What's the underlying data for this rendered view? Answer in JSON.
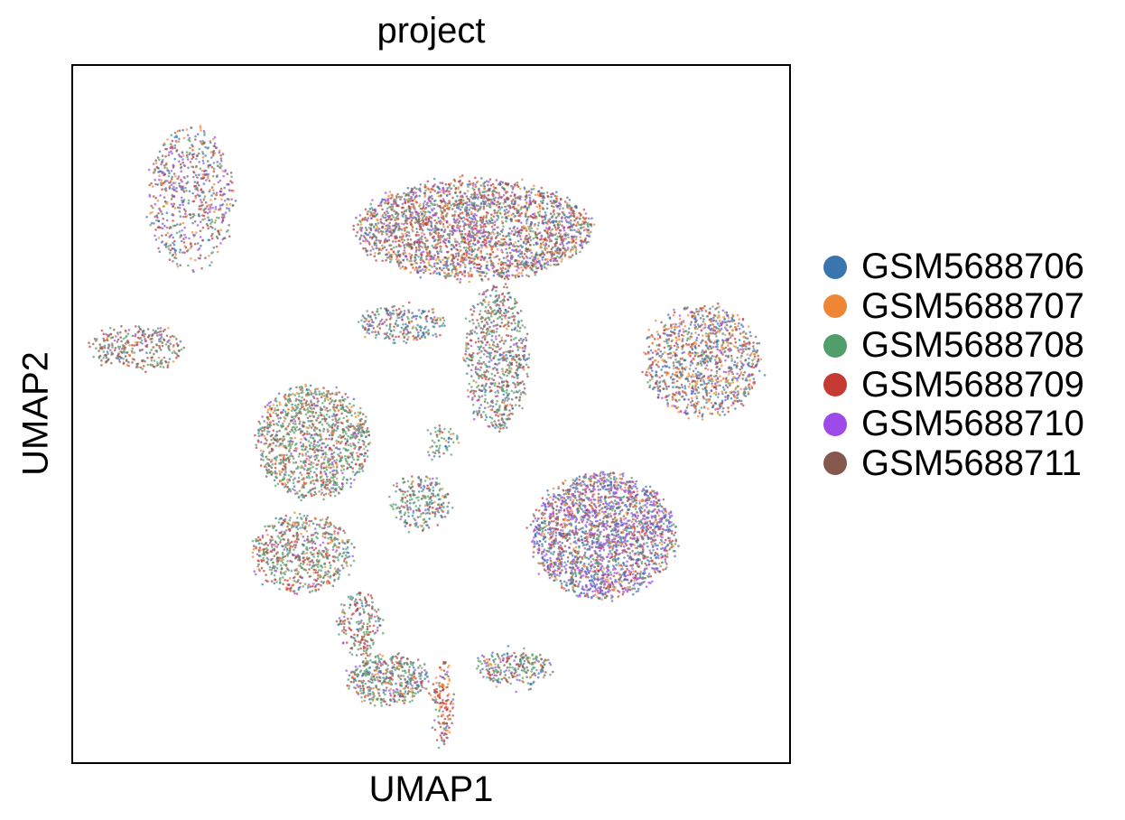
{
  "chart_data": {
    "type": "scatter",
    "title": "project",
    "xlabel": "UMAP1",
    "ylabel": "UMAP2",
    "grid": false,
    "ticks": "none",
    "legend_position": "right",
    "xlim": [
      0,
      100
    ],
    "ylim": [
      0,
      100
    ],
    "series": [
      {
        "name": "GSM5688706",
        "color": "#3a75b0"
      },
      {
        "name": "GSM5688707",
        "color": "#ef8636"
      },
      {
        "name": "GSM5688708",
        "color": "#519e6b"
      },
      {
        "name": "GSM5688709",
        "color": "#c53a32"
      },
      {
        "name": "GSM5688710",
        "color": "#9e4ae8"
      },
      {
        "name": "GSM5688711",
        "color": "#85584e"
      }
    ],
    "clusters": [
      {
        "cx": 56.0,
        "cy": 76.5,
        "rx": 16.5,
        "ry": 7.0,
        "n": 2600,
        "weights": [
          1,
          1,
          1,
          1.3,
          1,
          1.3
        ]
      },
      {
        "cx": 59.0,
        "cy": 58.0,
        "rx": 4.5,
        "ry": 10.5,
        "n": 700,
        "weights": [
          1,
          0.5,
          2,
          1,
          0.5,
          2
        ]
      },
      {
        "cx": 46.0,
        "cy": 63.0,
        "rx": 6.0,
        "ry": 2.5,
        "n": 250,
        "weights": [
          1.5,
          0.5,
          2,
          1,
          0.5,
          0.5
        ]
      },
      {
        "cx": 16.5,
        "cy": 81.0,
        "rx": 6.0,
        "ry": 10.5,
        "n": 650,
        "weights": [
          1.2,
          1,
          1,
          1,
          1.3,
          1.2
        ]
      },
      {
        "cx": 9.0,
        "cy": 59.5,
        "rx": 6.5,
        "ry": 3.2,
        "n": 300,
        "weights": [
          0.5,
          0.5,
          1.5,
          1,
          0.5,
          2
        ]
      },
      {
        "cx": 88.0,
        "cy": 57.5,
        "rx": 8.0,
        "ry": 8.0,
        "n": 1100,
        "weights": [
          1.6,
          1.6,
          0.5,
          0.6,
          0.5,
          1
        ]
      },
      {
        "cx": 74.0,
        "cy": 32.5,
        "rx": 10.0,
        "ry": 9.0,
        "n": 2200,
        "weights": [
          1.8,
          0.8,
          0.8,
          1,
          2,
          0.6
        ]
      },
      {
        "cx": 33.5,
        "cy": 46.0,
        "rx": 8.0,
        "ry": 8.0,
        "n": 1200,
        "weights": [
          0.6,
          0.8,
          2.6,
          1,
          0.4,
          0.8
        ]
      },
      {
        "cx": 32.0,
        "cy": 30.0,
        "rx": 7.0,
        "ry": 5.5,
        "n": 650,
        "weights": [
          0.6,
          0.8,
          2.5,
          1.3,
          0.4,
          0.8
        ]
      },
      {
        "cx": 48.5,
        "cy": 37.5,
        "rx": 4.0,
        "ry": 4.0,
        "n": 250,
        "weights": [
          1,
          0.4,
          2.5,
          0.8,
          0.4,
          0.4
        ]
      },
      {
        "cx": 51.5,
        "cy": 46.0,
        "rx": 2.0,
        "ry": 2.5,
        "n": 60,
        "weights": [
          1,
          0.3,
          2.5,
          0.5,
          0.3,
          0.3
        ]
      },
      {
        "cx": 40.0,
        "cy": 20.0,
        "rx": 3.0,
        "ry": 4.5,
        "n": 200,
        "weights": [
          1,
          0.5,
          2,
          2,
          0.5,
          0.6
        ]
      },
      {
        "cx": 44.0,
        "cy": 12.0,
        "rx": 5.5,
        "ry": 3.5,
        "n": 450,
        "weights": [
          1,
          0.6,
          2.6,
          0.8,
          0.4,
          0.5
        ]
      },
      {
        "cx": 61.5,
        "cy": 13.5,
        "rx": 5.0,
        "ry": 2.5,
        "n": 250,
        "weights": [
          1,
          0.6,
          2.3,
          0.8,
          0.6,
          0.8
        ]
      },
      {
        "cx": 51.5,
        "cy": 8.5,
        "rx": 1.2,
        "ry": 6.5,
        "n": 150,
        "weights": [
          0.5,
          1.8,
          0.5,
          2.4,
          0.3,
          0.8
        ]
      }
    ]
  }
}
